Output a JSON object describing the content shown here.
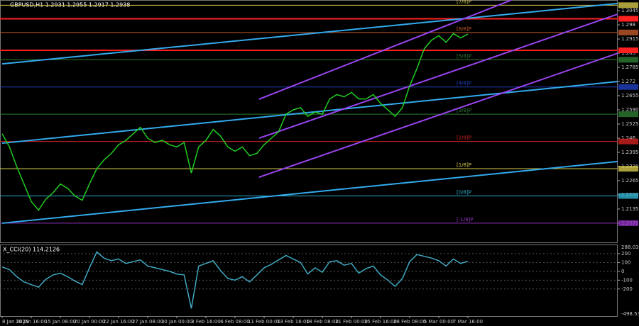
{
  "chart_data": [
    {
      "type": "line",
      "title": "GBPUSD,H1  1.2931 1.2955 1.2917 1.2938",
      "categories": [
        "8 Jan 2025",
        null,
        null,
        null,
        "10 Jan 16:00",
        null,
        null,
        null,
        "15 Jan 08:00",
        null,
        null,
        null,
        "20 Jan 00:00",
        null,
        null,
        null,
        "22 Jan 16:00",
        null,
        null,
        null,
        "27 Jan 08:00",
        null,
        null,
        null,
        "30 Jan 00:00",
        null,
        null,
        null,
        "3 Feb 16:00",
        null,
        null,
        null,
        "6 Feb 08:00",
        null,
        null,
        null,
        "11 Feb 00:00",
        null,
        null,
        null,
        "13 Feb 16:00",
        null,
        null,
        null,
        "18 Feb 08:00",
        null,
        null,
        null,
        "21 Feb 00:00",
        null,
        null,
        null,
        "25 Feb 16:00",
        null,
        null,
        null,
        "28 Feb 08:00",
        null,
        null,
        null,
        "5 Mar 00:00",
        null,
        null,
        null,
        "7 Mar 16:00",
        null,
        null,
        null
      ],
      "series": [
        {
          "color": "#22cc22",
          "values": [
            1.248,
            1.242,
            1.233,
            1.225,
            1.217,
            1.213,
            1.218,
            1.221,
            1.225,
            1.223,
            1.2195,
            1.2175,
            1.225,
            1.232,
            1.236,
            1.239,
            1.243,
            1.245,
            1.248,
            1.251,
            1.246,
            1.244,
            1.245,
            1.243,
            1.242,
            1.244,
            1.23,
            1.242,
            1.245,
            1.25,
            1.247,
            1.242,
            1.24,
            1.242,
            1.238,
            1.239,
            1.243,
            1.246,
            1.249,
            1.257,
            1.259,
            1.26,
            1.256,
            1.258,
            1.257,
            1.264,
            1.266,
            1.265,
            1.267,
            1.264,
            1.264,
            1.266,
            1.262,
            1.259,
            1.256,
            1.26,
            1.27,
            1.278,
            1.287,
            1.291,
            1.293,
            1.29,
            1.294,
            1.292,
            1.2938,
            null,
            null,
            null
          ]
        }
      ],
      "ylim": [
        1.1982,
        1.3094
      ],
      "yticks": [
        1.3045,
        1.298,
        1.2915,
        1.285,
        1.2785,
        1.272,
        1.2655,
        {
          "value": 1.259,
          "label": "1.2590"
        },
        1.2525,
        1.246,
        1.2395,
        {
          "value": 1.233,
          "label": "1.2330"
        },
        1.2265,
        {
          "value": 1.22,
          "label": "1.2200"
        },
        1.2135,
        {
          "value": 1.207,
          "label": "1.2070"
        }
      ],
      "levels": [
        {
          "name": "[7/8]P",
          "value": 1.307,
          "color": "#d4c84a"
        },
        {
          "name": "[6/8]P",
          "value": 1.2945,
          "color": "#c05a2a"
        },
        {
          "name": "[5/8]P",
          "value": 1.282,
          "color": "#2e7d32"
        },
        {
          "name": "[4/8]P",
          "value": 1.2695,
          "color": "#2040c0"
        },
        {
          "name": "[3/8]P",
          "value": 1.257,
          "color": "#2e7d32"
        },
        {
          "name": "[2/8]P",
          "value": 1.2445,
          "color": "#d02020"
        },
        {
          "name": "[1/8]P",
          "value": 1.232,
          "color": "#d4c84a"
        },
        {
          "name": "[0/8]P",
          "value": 1.2195,
          "color": "#30b0d0"
        },
        {
          "name": "[-1/8]P",
          "value": 1.207,
          "color": "#9030c0"
        }
      ],
      "resistance": [
        {
          "value": 1.3008,
          "color": "#ff2020"
        },
        {
          "value": 1.2863,
          "color": "#ff2020"
        }
      ],
      "trendlines": [
        {
          "color": "#33aaee",
          "from": [
            0,
            1.2801
          ],
          "to": [
            84.6,
            1.3078
          ]
        },
        {
          "color": "#33aaee",
          "from": [
            0,
            1.2437
          ],
          "to": [
            84.6,
            1.272
          ]
        },
        {
          "color": "#33aaee",
          "from": [
            0,
            1.207
          ],
          "to": [
            84.6,
            1.2353
          ]
        },
        {
          "color": "#9944ee",
          "from": [
            35.3,
            1.2639
          ],
          "to": [
            70,
            1.3094
          ]
        },
        {
          "color": "#9944ee",
          "from": [
            35.3,
            1.246
          ],
          "to": [
            84.6,
            1.3029
          ]
        },
        {
          "color": "#9944ee",
          "from": [
            35.3,
            1.2281
          ],
          "to": [
            84.6,
            1.285
          ]
        }
      ]
    },
    {
      "type": "line",
      "title": "X_CCI(20) 114.2126",
      "series": [
        {
          "color": "#40a8c0",
          "values": [
            50,
            20,
            -60,
            -120,
            -150,
            -180,
            -90,
            -40,
            -20,
            -60,
            -110,
            -150,
            40,
            220,
            150,
            120,
            140,
            90,
            110,
            130,
            60,
            40,
            20,
            0,
            -30,
            -40,
            -420,
            60,
            90,
            120,
            10,
            -80,
            -100,
            -60,
            -120,
            -40,
            40,
            80,
            130,
            180,
            140,
            100,
            -30,
            40,
            -10,
            110,
            120,
            70,
            90,
            -20,
            30,
            60,
            -40,
            -100,
            -170,
            -80,
            110,
            190,
            170,
            150,
            120,
            60,
            140,
            90,
            114,
            null,
            null,
            null
          ]
        }
      ],
      "ylim": [
        -498.5386,
        288.0311
      ],
      "yticks": [
        200,
        100,
        0,
        -100,
        -200
      ]
    }
  ]
}
